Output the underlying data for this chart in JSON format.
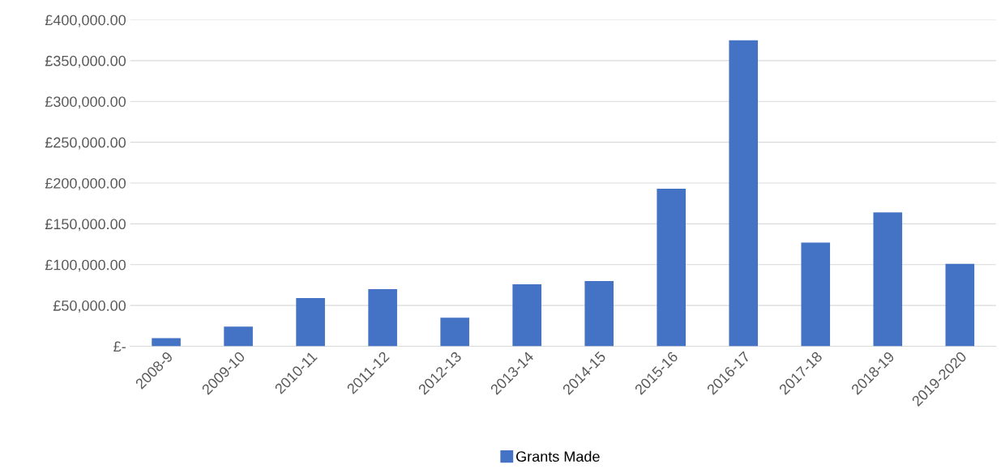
{
  "chart_data": {
    "type": "bar",
    "categories": [
      "2008-9",
      "2009-10",
      "2010-11",
      "2011-12",
      "2012-13",
      "2013-14",
      "2014-15",
      "2015-16",
      "2016-17",
      "2017-18",
      "2018-19",
      "2019-2020"
    ],
    "series": [
      {
        "name": "Grants Made",
        "color": "#4472c4",
        "values": [
          10000,
          24000,
          59000,
          70000,
          35000,
          76000,
          80000,
          193000,
          375000,
          127000,
          164000,
          101000
        ]
      }
    ],
    "ylim": [
      0,
      400000
    ],
    "yticks": [
      {
        "value": 0,
        "label": "£-"
      },
      {
        "value": 50000,
        "label": "£50,000.00"
      },
      {
        "value": 100000,
        "label": "£100,000.00"
      },
      {
        "value": 150000,
        "label": "£150,000.00"
      },
      {
        "value": 200000,
        "label": "£200,000.00"
      },
      {
        "value": 250000,
        "label": "£250,000.00"
      },
      {
        "value": 300000,
        "label": "£300,000.00"
      },
      {
        "value": 350000,
        "label": "£350,000.00"
      },
      {
        "value": 400000,
        "label": "£400,000.00"
      }
    ],
    "grid": "y",
    "legend": "bottom"
  }
}
